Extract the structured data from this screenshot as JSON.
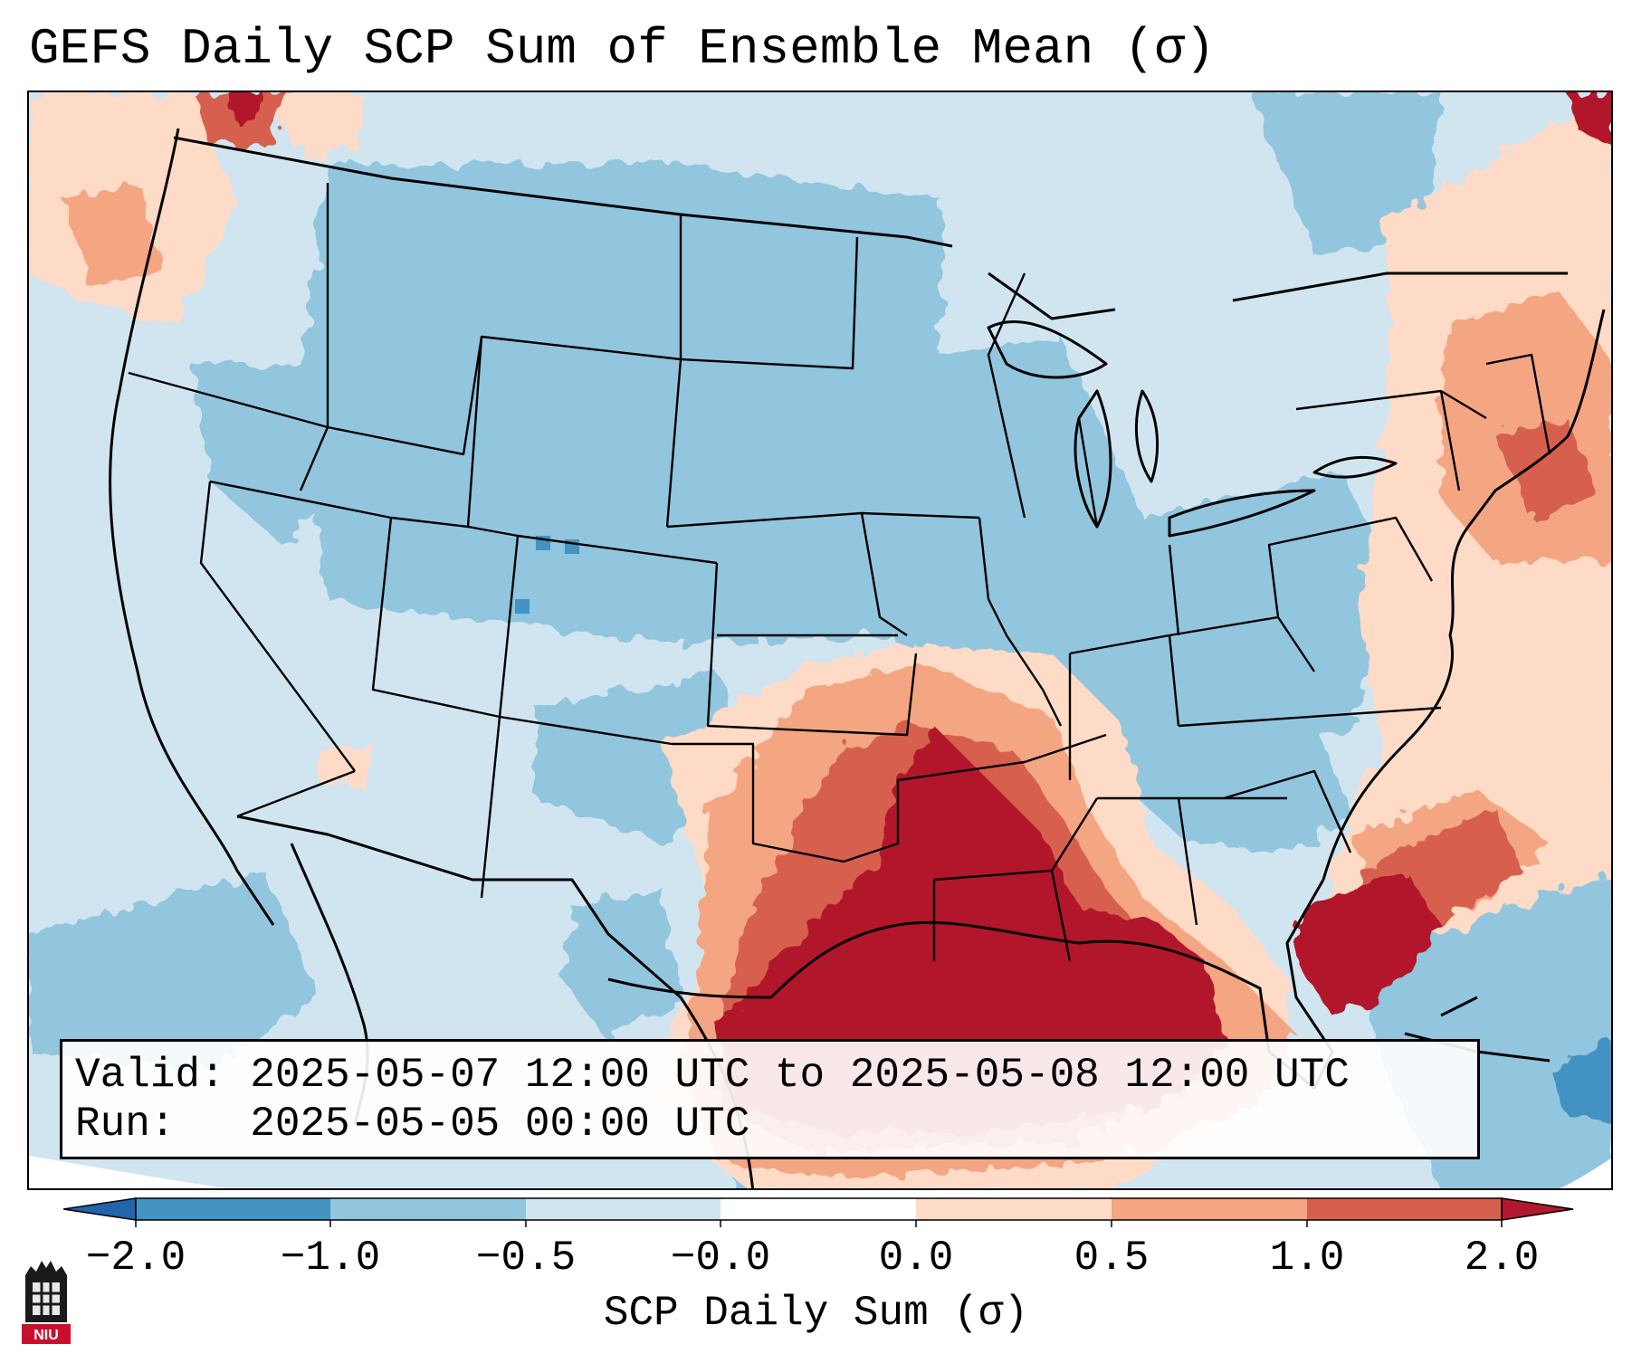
{
  "title": "GEFS Daily SCP Sum of Ensemble Mean (σ)",
  "info": {
    "valid": "Valid: 2025-05-07 12:00 UTC to 2025-05-08 12:00 UTC",
    "run": "Run:   2025-05-05 00:00 UTC"
  },
  "colorbar": {
    "label": "SCP Daily Sum (σ)",
    "ticks": [
      "−2.0",
      "−1.0",
      "−0.5",
      "−0.0",
      "0.0",
      "0.5",
      "1.0",
      "2.0"
    ],
    "colors": {
      "extend_low": "#2166ac",
      "bin1": "#4393c3",
      "bin2": "#92c5de",
      "bin3": "#d1e5f0",
      "bin4": "#fddbc7",
      "bin5": "#f4a582",
      "bin6": "#d6604d",
      "extend_high": "#b2182b"
    }
  },
  "logo": {
    "text": "NIU",
    "icon": "university-tower-icon"
  },
  "map": {
    "projection": "lambert-conformal",
    "region": "CONUS"
  }
}
